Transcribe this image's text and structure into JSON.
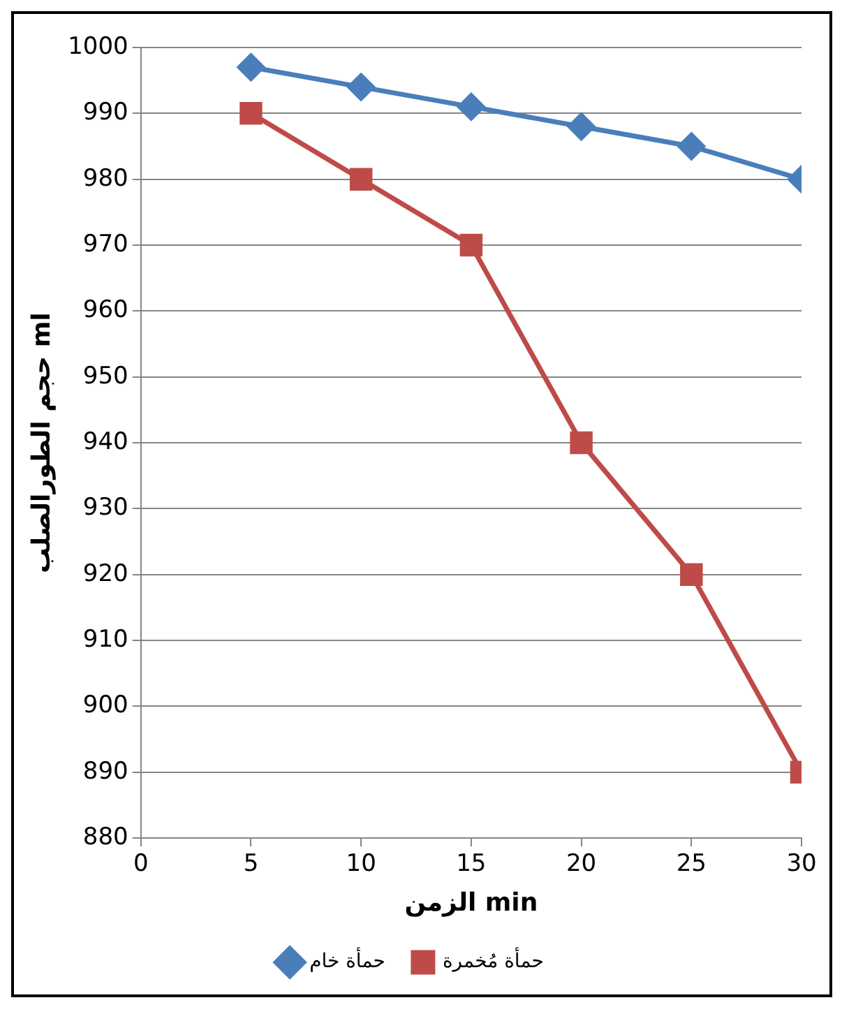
{
  "chart_data": {
    "type": "line",
    "xlabel": "الزمن min",
    "ylabel": "حجم الطورالصلب ml",
    "x": [
      5,
      10,
      15,
      20,
      25,
      30
    ],
    "series": [
      {
        "name": "حمأة خام",
        "color": "#4a7ebb",
        "marker": "diamond",
        "values": [
          997,
          994,
          991,
          988,
          985,
          980
        ]
      },
      {
        "name": "حمأة مُخمرة",
        "color": "#be4b48",
        "marker": "square",
        "values": [
          990,
          980,
          970,
          940,
          920,
          890
        ]
      }
    ],
    "xlim": [
      0,
      30
    ],
    "xticks": [
      0,
      5,
      10,
      15,
      20,
      25,
      30
    ],
    "ylim": [
      880,
      1000
    ],
    "yticks": [
      880,
      890,
      900,
      910,
      920,
      930,
      940,
      950,
      960,
      970,
      980,
      990,
      1000
    ],
    "grid": "y",
    "legend": "bottom",
    "line_style": "solid"
  }
}
